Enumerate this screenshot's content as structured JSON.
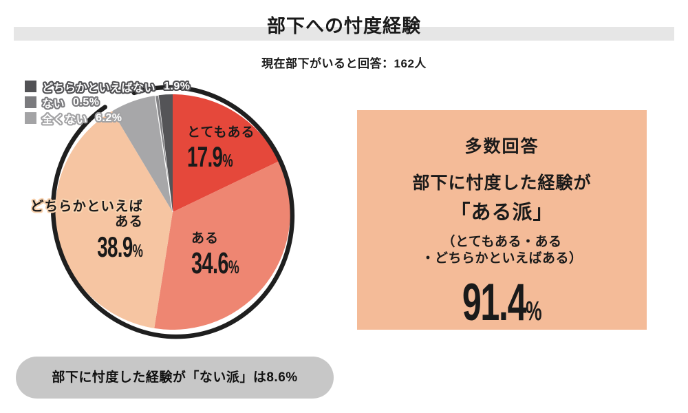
{
  "header": {
    "title": "部下への忖度経験",
    "subtitle": "現在部下がいると回答：162人"
  },
  "chart_data": {
    "type": "pie",
    "title": "部下への忖度経験",
    "unit": "%",
    "direction": "clockwise",
    "start_angle_deg": 0,
    "percent_sign": "%",
    "ring_color": "#1f1f1f",
    "legend_position": "top-left",
    "series": [
      {
        "label": "とてもある",
        "value": 17.9,
        "pct": "17.9",
        "color": "#e5483b"
      },
      {
        "label": "ある",
        "value": 34.6,
        "pct": "34.6",
        "color": "#ee8672"
      },
      {
        "label": "どちらかといえばある",
        "label_line1": "どちらかといえば",
        "label_line2": "ある",
        "value": 38.9,
        "pct": "38.9",
        "color": "#f6c5a2",
        "halo": "#f9d3b0"
      },
      {
        "label": "全くない",
        "value": 6.2,
        "pct": "6.2",
        "color": "#a7a7a9"
      },
      {
        "label": "ない",
        "value": 0.5,
        "pct": "0.5",
        "color": "#828285",
        "stroke": "#ffffff"
      },
      {
        "label": "どちらかといえばない",
        "value": 1.9,
        "pct": "1.9",
        "color": "#545457"
      }
    ]
  },
  "legend": {
    "items": [
      {
        "label": "どちらかといえばない",
        "value": "1.9%",
        "color": "#525255"
      },
      {
        "label": "ない",
        "value": "0.5%",
        "color": "#7b7b7e"
      },
      {
        "label": "全くない",
        "value": "6.2%",
        "color": "#a3a3a5"
      }
    ]
  },
  "summary_box": {
    "bg": "#f4bb98",
    "heading": "多数回答",
    "line1": "部下に忖度した経験が",
    "line2": "「ある派」",
    "note_line1": "（とてもある・ある",
    "note_line2": "・どちらかといえばある）",
    "value": "91.4",
    "percent_sign": "%"
  },
  "footer_pill": {
    "text": "部下に忖度した経験が「ない派」は8.6%",
    "bg": "#c7c7c7"
  },
  "colors": {
    "title_band": "#e6e6e6",
    "background": "#ffffff"
  }
}
